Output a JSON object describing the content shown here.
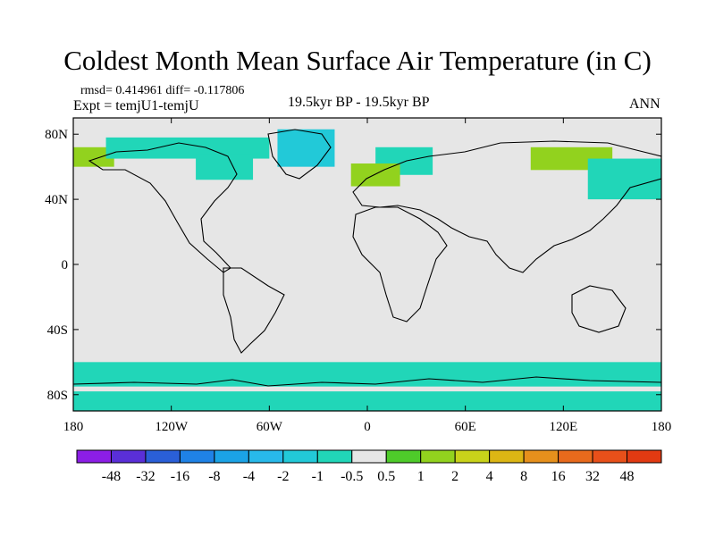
{
  "title": "Coldest Month Mean Surface Air Temperature (in C)",
  "stats": "rmsd= 0.414961 diff= -0.117806",
  "experiment": "Expt = temjU1-temjU",
  "center_label": "19.5kyr BP - 19.5kyr BP",
  "season": "ANN",
  "chart_data": {
    "type": "heatmap",
    "title": "Coldest Month Mean Surface Air Temperature (in C)",
    "projection": "cylindrical equidistant",
    "lon_range": [
      -180,
      180
    ],
    "lat_range": [
      -90,
      90
    ],
    "lon_ticks": [
      {
        "value": -180,
        "label": "180"
      },
      {
        "value": -120,
        "label": "120W"
      },
      {
        "value": -60,
        "label": "60W"
      },
      {
        "value": 0,
        "label": "0"
      },
      {
        "value": 60,
        "label": "60E"
      },
      {
        "value": 120,
        "label": "120E"
      },
      {
        "value": 180,
        "label": "180"
      }
    ],
    "lat_ticks": [
      {
        "value": 80,
        "label": "80N"
      },
      {
        "value": 40,
        "label": "40N"
      },
      {
        "value": 0,
        "label": "0"
      },
      {
        "value": -40,
        "label": "40S"
      },
      {
        "value": -80,
        "label": "80S"
      }
    ],
    "colorbar": {
      "labels": [
        "-48",
        "-32",
        "-16",
        "-8",
        "-4",
        "-2",
        "-1",
        "-0.5",
        "0.5",
        "1",
        "2",
        "4",
        "8",
        "16",
        "32",
        "48"
      ],
      "colors": [
        "#8c1ee6",
        "#5a2fd8",
        "#2a5fd8",
        "#1f82e6",
        "#1ba3e6",
        "#28b9ea",
        "#22c9d8",
        "#21d6b8",
        "#e6e6e6",
        "#4ecb2a",
        "#92d21e",
        "#c9d21a",
        "#dcb614",
        "#e6901c",
        "#e86a1c",
        "#e8501a",
        "#e23a12"
      ],
      "neutral_color": "#e6e6e6",
      "land_line_color": "#000000"
    },
    "regions": [
      {
        "name": "greenland",
        "level": "-1",
        "lon": [
          -55,
          -20
        ],
        "lat": [
          60,
          83
        ]
      },
      {
        "name": "alaska-west",
        "level": "1",
        "lon": [
          -180,
          -155
        ],
        "lat": [
          60,
          72
        ]
      },
      {
        "name": "canada-arctic",
        "level": "-0.5",
        "lon": [
          -160,
          -60
        ],
        "lat": [
          65,
          78
        ]
      },
      {
        "name": "hudson-area",
        "level": "-0.5",
        "lon": [
          -105,
          -70
        ],
        "lat": [
          52,
          68
        ]
      },
      {
        "name": "scandinavia",
        "level": "-0.5",
        "lon": [
          5,
          40
        ],
        "lat": [
          55,
          72
        ]
      },
      {
        "name": "europe-west",
        "level": "1",
        "lon": [
          -10,
          20
        ],
        "lat": [
          48,
          62
        ]
      },
      {
        "name": "siberia",
        "level": "1",
        "lon": [
          100,
          150
        ],
        "lat": [
          58,
          72
        ]
      },
      {
        "name": "east-siberia",
        "level": "-0.5",
        "lon": [
          135,
          180
        ],
        "lat": [
          40,
          65
        ]
      },
      {
        "name": "southern-ocean-band",
        "level": "-0.5",
        "lon": [
          -180,
          180
        ],
        "lat": [
          -75,
          -60
        ]
      },
      {
        "name": "antarctica-interior",
        "level": "-0.5",
        "lon": [
          -180,
          180
        ],
        "lat": [
          -90,
          -78
        ]
      }
    ]
  }
}
